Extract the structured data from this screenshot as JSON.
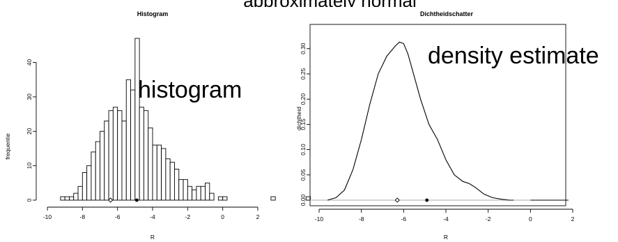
{
  "banner_text": "approximately normal",
  "chart_data": [
    {
      "type": "bar",
      "title": "Histogram",
      "xlabel": "R",
      "ylabel": "frequentie",
      "annotation": "histogram",
      "xlim": [
        -10,
        2
      ],
      "ylim": [
        0,
        47
      ],
      "xticks": [
        "-10",
        "-8",
        "-6",
        "-4",
        "-2",
        "0",
        "2"
      ],
      "yticks": [
        "0",
        "10",
        "20",
        "30",
        "40"
      ],
      "bin_width": 0.25,
      "bin_start": -9.25,
      "values": [
        1,
        1,
        1,
        2,
        4,
        8,
        10,
        14,
        17,
        20,
        23,
        26,
        27,
        26,
        23,
        35,
        32,
        47,
        27,
        26,
        21,
        16,
        16,
        15,
        12,
        11,
        9,
        6,
        6,
        4,
        3,
        4,
        4,
        5,
        2,
        0,
        1,
        1,
        0,
        0,
        0,
        0,
        0,
        0,
        0,
        0,
        0,
        0,
        1,
        0,
        0,
        0,
        0,
        0,
        0,
        0,
        1
      ],
      "markers": [
        {
          "x": -6.4,
          "shape": "diamond-open"
        },
        {
          "x": -4.9,
          "shape": "circle-filled"
        }
      ]
    },
    {
      "type": "line",
      "title": "Dichtheidschatter",
      "xlabel": "R",
      "ylabel": "dichtheid",
      "annotation": "density estimate",
      "xlim": [
        -10,
        2
      ],
      "ylim": [
        0,
        0.33
      ],
      "xticks": [
        "-10",
        "-8",
        "-6",
        "-4",
        "-2",
        "0",
        "2"
      ],
      "yticks": [
        "0.00",
        "0.05",
        "0.10",
        "0.15",
        "0.20",
        "0.25",
        "0.30"
      ],
      "x": [
        -9.6,
        -9.2,
        -8.8,
        -8.4,
        -8.0,
        -7.6,
        -7.2,
        -6.8,
        -6.4,
        -6.2,
        -6.0,
        -5.8,
        -5.6,
        -5.2,
        -4.8,
        -4.4,
        -4.0,
        -3.6,
        -3.2,
        -2.9,
        -2.6,
        -2.2,
        -1.8,
        -1.4,
        -1.0,
        -0.8
      ],
      "y": [
        0.0,
        0.005,
        0.02,
        0.06,
        0.12,
        0.19,
        0.25,
        0.285,
        0.305,
        0.313,
        0.31,
        0.29,
        0.26,
        0.2,
        0.15,
        0.12,
        0.08,
        0.05,
        0.037,
        0.033,
        0.025,
        0.012,
        0.005,
        0.002,
        0.0,
        0.0
      ],
      "flat_segment": {
        "x": [
          0.0,
          1.8
        ],
        "y": 0.0
      },
      "markers": [
        {
          "x": -6.3,
          "shape": "diamond-open"
        },
        {
          "x": -4.9,
          "shape": "circle-filled"
        }
      ]
    }
  ]
}
